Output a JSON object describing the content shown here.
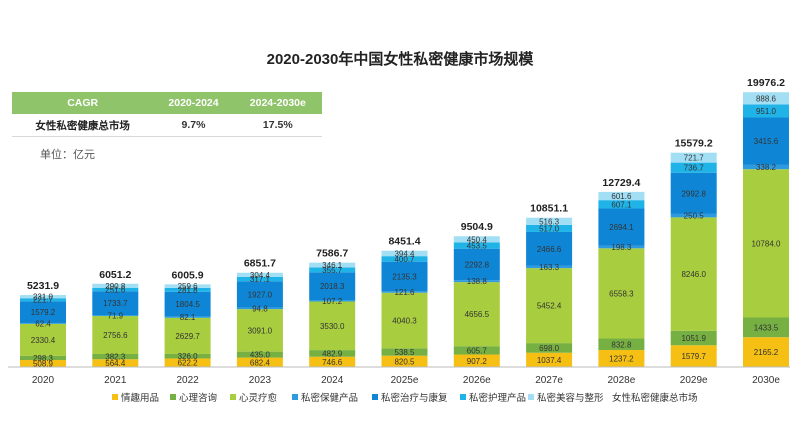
{
  "chart_data": {
    "type": "bar",
    "stacked": true,
    "title": "2020-2030年中国女性私密健康市场规模",
    "unit_label": "单位：亿元",
    "categories": [
      "2020",
      "2021",
      "2022",
      "2023",
      "2024",
      "2025e",
      "2026e",
      "2027e",
      "2028e",
      "2029e",
      "2030e"
    ],
    "totals": [
      5231.9,
      6051.2,
      6005.9,
      6851.7,
      7586.7,
      8451.4,
      9504.9,
      10851.1,
      12729.4,
      15579.2,
      19976.2
    ],
    "series": [
      {
        "name": "情趣用品",
        "color": "#f5c013",
        "values": [
          508.9,
          564.4,
          622.2,
          682.4,
          746.6,
          820.5,
          907.2,
          1037.4,
          1237.2,
          1579.7,
          2165.2
        ]
      },
      {
        "name": "心理咨询",
        "color": "#76b043",
        "values": [
          298.3,
          382.3,
          326.0,
          435.0,
          482.9,
          538.5,
          605.7,
          698.0,
          832.8,
          1051.9,
          1433.5
        ]
      },
      {
        "name": "心灵疗愈",
        "color": "#a8cd3f",
        "values": [
          2330.4,
          2756.6,
          2629.7,
          3091.0,
          3530.0,
          4040.3,
          4656.5,
          5452.4,
          6558.3,
          8246.0,
          10784.0
        ]
      },
      {
        "name": "私密保健产品",
        "color": "#2e9be0",
        "values": [
          62.4,
          71.9,
          82.1,
          94.8,
          107.2,
          121.6,
          138.8,
          163.3,
          198.3,
          250.5,
          338.2
        ]
      },
      {
        "name": "私密治疗与康复",
        "color": "#0f86d5",
        "values": [
          1579.2,
          1733.7,
          1804.5,
          1927.0,
          2018.3,
          2135.3,
          2292.8,
          2466.6,
          2694.1,
          2992.8,
          3415.6
        ]
      },
      {
        "name": "私密护理产品",
        "color": "#1fb3e8",
        "values": [
          221.7,
          251.6,
          281.8,
          317.1,
          355.7,
          400.7,
          453.5,
          517.0,
          607.1,
          736.7,
          951.0
        ]
      },
      {
        "name": "私密美容与整形",
        "color": "#a3dff4",
        "values": [
          231.0,
          290.8,
          259.6,
          304.4,
          346.1,
          394.4,
          450.4,
          516.3,
          601.6,
          721.7,
          888.6
        ]
      }
    ],
    "total_series_name": "女性私密健康总市场",
    "ylim": [
      0,
      20500
    ],
    "grid": false,
    "legend": "bottom"
  },
  "cagr_table": {
    "headers": [
      "CAGR",
      "2020-2024",
      "2024-2030e"
    ],
    "rows": [
      {
        "name": "女性私密健康总市场",
        "v1": "9.7%",
        "v2": "17.5%"
      }
    ]
  }
}
